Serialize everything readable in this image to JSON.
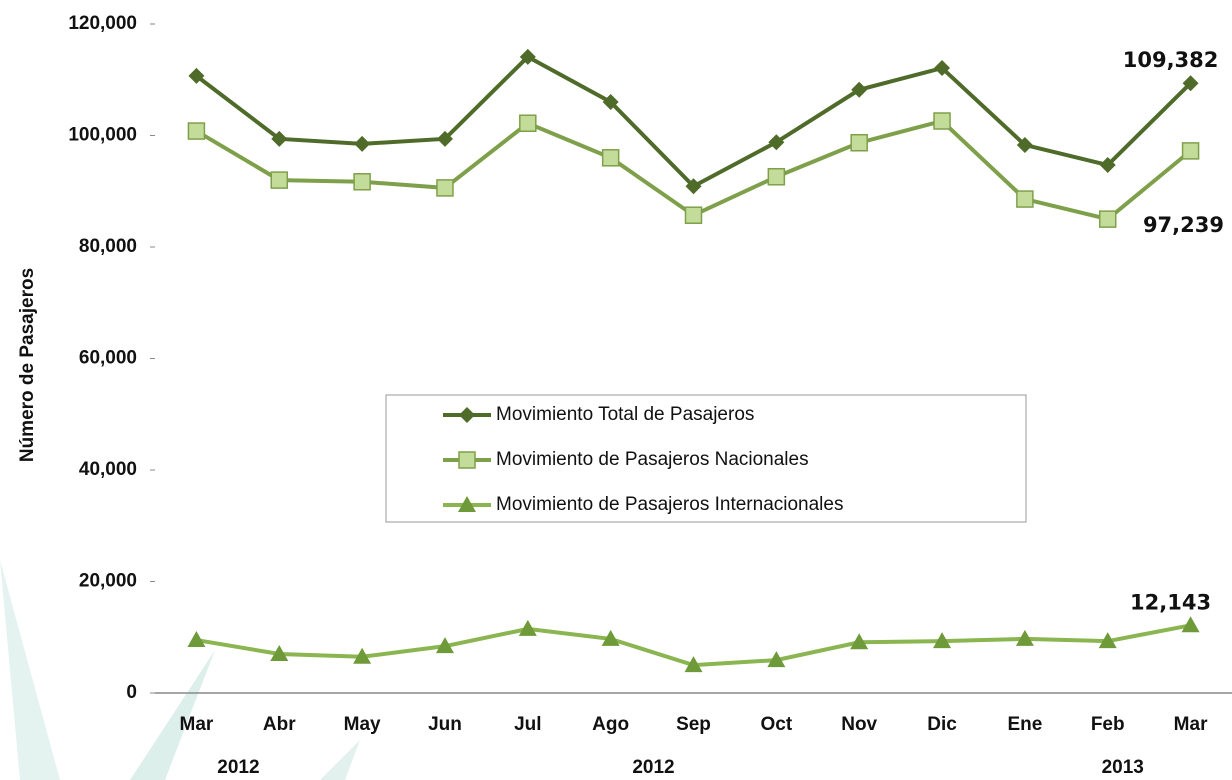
{
  "chart_data": {
    "type": "line",
    "y_label": "Número de Pasajeros",
    "categories": [
      "Mar",
      "Abr",
      "May",
      "Jun",
      "Jul",
      "Ago",
      "Sep",
      "Oct",
      "Nov",
      "Dic",
      "Ene",
      "Feb",
      "Mar"
    ],
    "category_years": [
      "2012",
      null,
      null,
      null,
      null,
      null,
      "2012",
      null,
      null,
      null,
      null,
      "2013",
      null
    ],
    "series": [
      {
        "name": "Movimiento Total de Pasajeros",
        "color": "#4f6b2a",
        "marker": "diamond",
        "values": [
          110700,
          99400,
          98500,
          99400,
          114100,
          106000,
          90900,
          98800,
          108200,
          112100,
          98300,
          94700,
          109382
        ],
        "value_labels": [
          null,
          null,
          null,
          null,
          null,
          null,
          null,
          null,
          null,
          null,
          null,
          null,
          "109,382"
        ]
      },
      {
        "name": "Movimiento de Pasajeros Nacionales",
        "color": "#7fa04a",
        "marker": "square",
        "values": [
          100800,
          92000,
          91700,
          90600,
          102200,
          96000,
          85700,
          92600,
          98700,
          102600,
          88600,
          85000,
          97239
        ],
        "value_labels": [
          null,
          null,
          null,
          null,
          null,
          null,
          null,
          null,
          null,
          null,
          null,
          null,
          "97,239"
        ]
      },
      {
        "name": "Movimiento de Pasajeros Internacionales",
        "color": "#8ab550",
        "marker": "triangle",
        "values": [
          9500,
          7000,
          6500,
          8400,
          11500,
          9700,
          5000,
          5900,
          9100,
          9300,
          9700,
          9300,
          12143
        ],
        "value_labels": [
          null,
          null,
          null,
          null,
          null,
          null,
          null,
          null,
          null,
          null,
          null,
          null,
          "12,143"
        ]
      }
    ],
    "ylim": [
      0,
      120000
    ],
    "yticks": [
      0,
      {
        "value": 20000,
        "label": "20,000"
      },
      {
        "value": 40000,
        "label": "40,000"
      },
      {
        "value": 60000,
        "label": "60,000"
      },
      {
        "value": 80000,
        "label": "80,000"
      },
      {
        "value": 100000,
        "label": "100,000"
      },
      {
        "value": 120000,
        "label": "120,000"
      }
    ],
    "grid": false
  }
}
